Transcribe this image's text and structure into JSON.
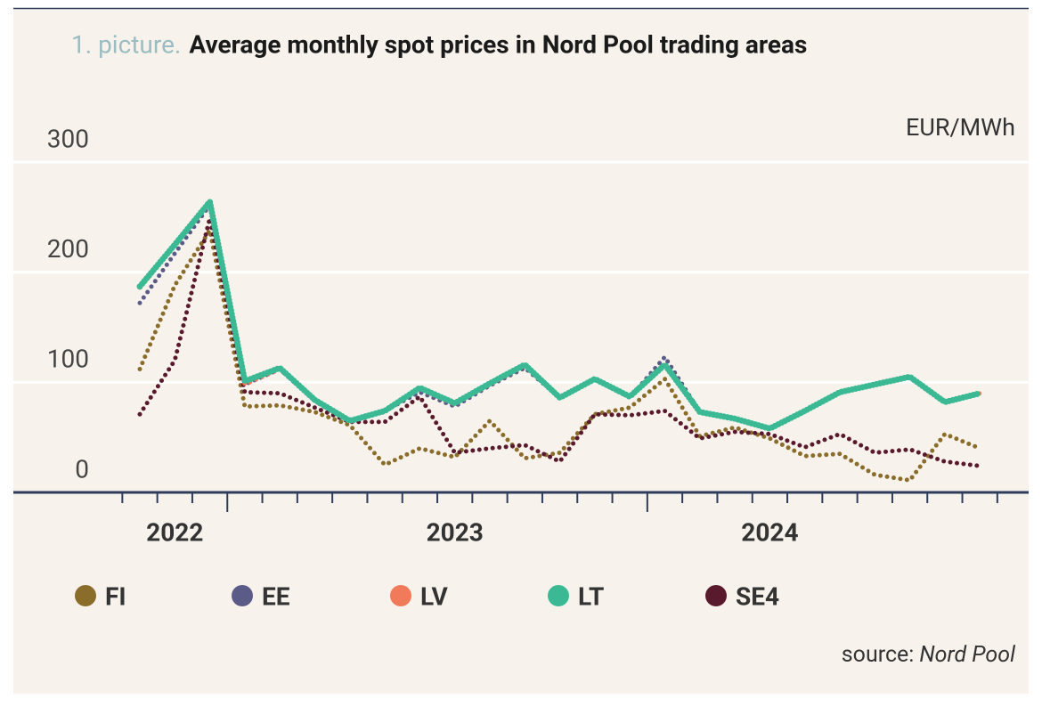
{
  "chart_data": {
    "type": "line",
    "title_prefix": "1. picture.",
    "title": "Average monthly spot prices in Nord Pool trading areas",
    "unit": "EUR/MWh",
    "source_label": "source:",
    "source_name": "Nord Pool",
    "categories": [
      null,
      "2022",
      null,
      null,
      null,
      null,
      null,
      null,
      null,
      "2023",
      null,
      null,
      null,
      null,
      null,
      null,
      null,
      null,
      "2024",
      null,
      null,
      null,
      null,
      null,
      null
    ],
    "series": [
      {
        "name": "FI",
        "color": "#8a6d2b",
        "values": [
          112,
          188,
          238,
          78,
          79,
          73,
          61,
          25,
          40,
          32,
          65,
          31,
          36,
          71,
          77,
          103,
          51,
          59,
          49,
          33,
          35,
          16,
          11,
          53,
          40
        ]
      },
      {
        "name": "EE",
        "color": "#5b5b88",
        "values": [
          172,
          217,
          261,
          98,
          112,
          83,
          64,
          74,
          91,
          78,
          97,
          113,
          86,
          103,
          86,
          123,
          73,
          67,
          58,
          74,
          91,
          98,
          105,
          82,
          90
        ]
      },
      {
        "name": "LV",
        "color": "#f07a5a",
        "values": [
          186,
          224,
          263,
          98,
          112,
          84,
          65,
          74,
          94,
          80,
          98,
          115,
          86,
          103,
          87,
          115,
          73,
          67,
          58,
          74,
          91,
          98,
          105,
          82,
          90
        ]
      },
      {
        "name": "LT",
        "color": "#3bb994",
        "values": [
          187,
          225,
          264,
          101,
          113,
          84,
          65,
          74,
          95,
          81,
          99,
          116,
          86,
          103,
          87,
          116,
          73,
          67,
          58,
          74,
          91,
          98,
          105,
          82,
          90
        ]
      },
      {
        "name": "SE4",
        "color": "#5a1a2e",
        "values": [
          71,
          120,
          249,
          91,
          90,
          77,
          64,
          64,
          87,
          36,
          40,
          43,
          28,
          71,
          70,
          74,
          49,
          55,
          53,
          41,
          53,
          36,
          39,
          28,
          24
        ]
      }
    ],
    "ylim": [
      0,
      300
    ],
    "yticks": [
      0,
      100,
      200,
      300
    ],
    "grid": true
  }
}
